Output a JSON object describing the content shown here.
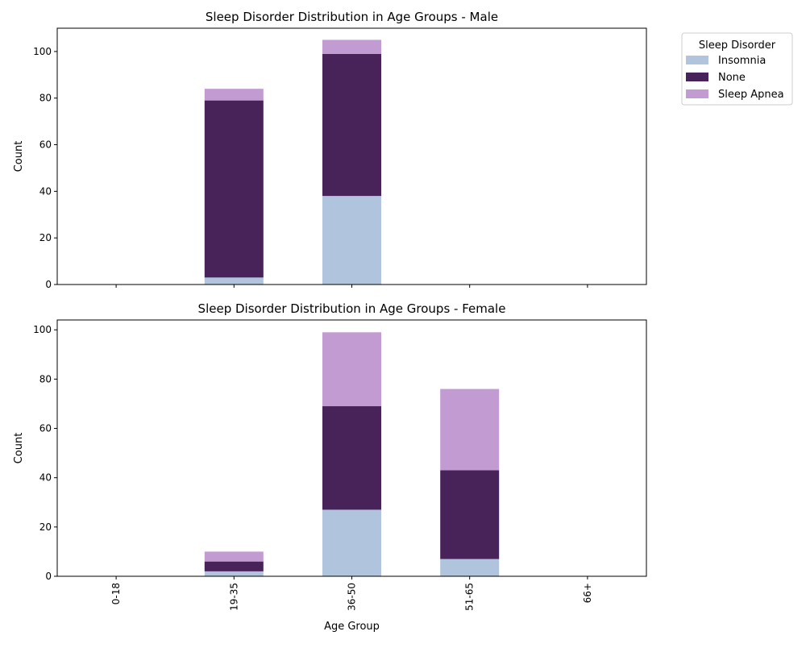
{
  "colors": {
    "Insomnia": "#b0c4de",
    "None": "#482359",
    "Sleep Apnea": "#c39bd3"
  },
  "legend": {
    "title": "Sleep Disorder",
    "placement": "upper-right-outside",
    "entries": [
      "Insomnia",
      "None",
      "Sleep Apnea"
    ]
  },
  "shared_x_label": "Age Group",
  "chart_data": [
    {
      "type": "bar",
      "stacked": true,
      "title": "Sleep Disorder Distribution in Age Groups - Male",
      "xlabel": "",
      "ylabel": "Count",
      "ylim": [
        0,
        110
      ],
      "yticks": [
        0,
        20,
        40,
        60,
        80,
        100
      ],
      "show_x_tick_labels": false,
      "categories": [
        "0-18",
        "19-35",
        "36-50",
        "51-65",
        "66+"
      ],
      "series": [
        {
          "name": "Insomnia",
          "values": [
            0,
            3,
            38,
            0,
            0
          ]
        },
        {
          "name": "None",
          "values": [
            0,
            76,
            61,
            0,
            0
          ]
        },
        {
          "name": "Sleep Apnea",
          "values": [
            0,
            5,
            6,
            0,
            0
          ]
        }
      ]
    },
    {
      "type": "bar",
      "stacked": true,
      "title": "Sleep Disorder Distribution in Age Groups - Female",
      "xlabel": "Age Group",
      "ylabel": "Count",
      "ylim": [
        0,
        104
      ],
      "yticks": [
        0,
        20,
        40,
        60,
        80,
        100
      ],
      "show_x_tick_labels": true,
      "categories": [
        "0-18",
        "19-35",
        "36-50",
        "51-65",
        "66+"
      ],
      "series": [
        {
          "name": "Insomnia",
          "values": [
            0,
            2,
            27,
            7,
            0
          ]
        },
        {
          "name": "None",
          "values": [
            0,
            4,
            42,
            36,
            0
          ]
        },
        {
          "name": "Sleep Apnea",
          "values": [
            0,
            4,
            30,
            33,
            0
          ]
        }
      ]
    }
  ]
}
